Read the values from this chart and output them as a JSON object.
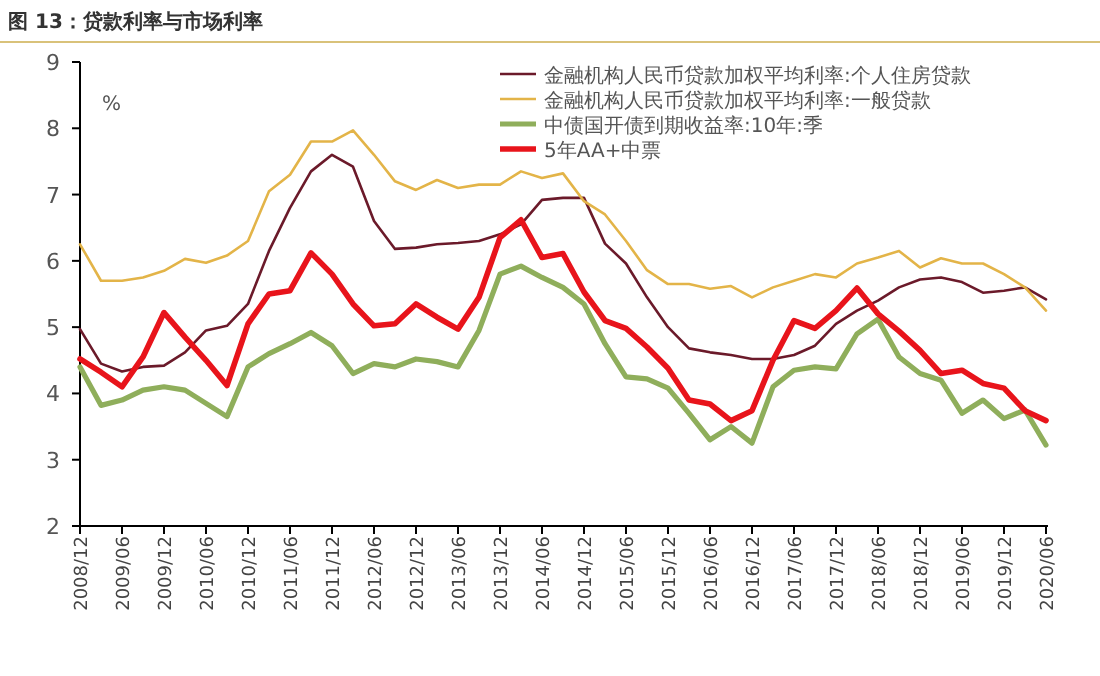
{
  "chart_data": {
    "type": "line",
    "title": "图 13：贷款利率与市场利率",
    "ylabel": "%",
    "categories": [
      "2008/12",
      null,
      "2009/06",
      null,
      "2009/12",
      null,
      "2010/06",
      null,
      "2010/12",
      null,
      "2011/06",
      null,
      "2011/12",
      null,
      "2012/06",
      null,
      "2012/12",
      null,
      "2013/06",
      null,
      "2013/12",
      null,
      "2014/06",
      null,
      "2014/12",
      null,
      "2015/06",
      null,
      "2015/12",
      null,
      "2016/06",
      null,
      "2016/12",
      null,
      "2017/06",
      null,
      "2017/12",
      null,
      "2018/06",
      null,
      "2018/12",
      null,
      "2019/06",
      null,
      "2019/12",
      null,
      "2020/06"
    ],
    "series": [
      {
        "name": "金融机构人民币贷款加权平均利率:个人住房贷款",
        "color": "#6b1a2a",
        "values": [
          4.97,
          4.45,
          4.33,
          4.4,
          4.42,
          4.62,
          4.95,
          5.02,
          5.35,
          6.15,
          6.8,
          7.35,
          7.6,
          7.42,
          6.6,
          6.18,
          6.2,
          6.25,
          6.27,
          6.3,
          6.4,
          6.55,
          6.92,
          6.95,
          6.95,
          6.26,
          5.96,
          5.45,
          5.0,
          4.68,
          4.62,
          4.58,
          4.52,
          4.52,
          4.58,
          4.72,
          5.05,
          5.25,
          5.4,
          5.6,
          5.72,
          5.75,
          5.68,
          5.52,
          5.55,
          5.6,
          5.42
        ]
      },
      {
        "name": "金融机构人民币贷款加权平均利率:一般贷款",
        "color": "#e3b448",
        "values": [
          6.25,
          5.7,
          5.7,
          5.75,
          5.85,
          6.03,
          5.97,
          6.08,
          6.3,
          7.05,
          7.3,
          7.8,
          7.8,
          7.97,
          7.6,
          7.2,
          7.07,
          7.22,
          7.1,
          7.15,
          7.15,
          7.35,
          7.25,
          7.32,
          6.9,
          6.7,
          6.3,
          5.86,
          5.65,
          5.65,
          5.58,
          5.62,
          5.45,
          5.6,
          5.7,
          5.8,
          5.75,
          5.96,
          6.05,
          6.15,
          5.9,
          6.04,
          5.96,
          5.96,
          5.8,
          5.6,
          5.25
        ]
      },
      {
        "name": "中债国开债到期收益率:10年:季",
        "color": "#8fae5b",
        "values": [
          4.4,
          3.82,
          3.9,
          4.05,
          4.1,
          4.05,
          3.85,
          3.65,
          4.4,
          4.6,
          4.75,
          4.92,
          4.72,
          4.3,
          4.45,
          4.4,
          4.52,
          4.48,
          4.4,
          4.95,
          5.8,
          5.92,
          5.75,
          5.6,
          5.35,
          4.75,
          4.25,
          4.22,
          4.08,
          3.7,
          3.3,
          3.5,
          3.25,
          4.1,
          4.35,
          4.4,
          4.37,
          4.9,
          5.12,
          4.55,
          4.3,
          4.2,
          3.7,
          3.9,
          3.62,
          3.75,
          3.22
        ]
      },
      {
        "name": "5年AA+中票",
        "color": "#e8141b",
        "values": [
          4.52,
          4.32,
          4.1,
          4.55,
          5.22,
          4.85,
          4.5,
          4.12,
          5.05,
          5.5,
          5.55,
          6.12,
          5.8,
          5.35,
          5.02,
          5.05,
          5.35,
          5.15,
          4.97,
          5.45,
          6.35,
          6.62,
          6.05,
          6.11,
          5.53,
          5.1,
          4.98,
          4.7,
          4.38,
          3.9,
          3.84,
          3.59,
          3.74,
          4.5,
          5.1,
          4.98,
          5.25,
          5.59,
          5.2,
          4.94,
          4.65,
          4.3,
          4.35,
          4.15,
          4.08,
          3.74,
          3.59
        ]
      }
    ],
    "ylim": [
      2,
      9
    ],
    "yticks": [
      2,
      3,
      4,
      5,
      6,
      7,
      8,
      9
    ],
    "legend": "top right"
  }
}
